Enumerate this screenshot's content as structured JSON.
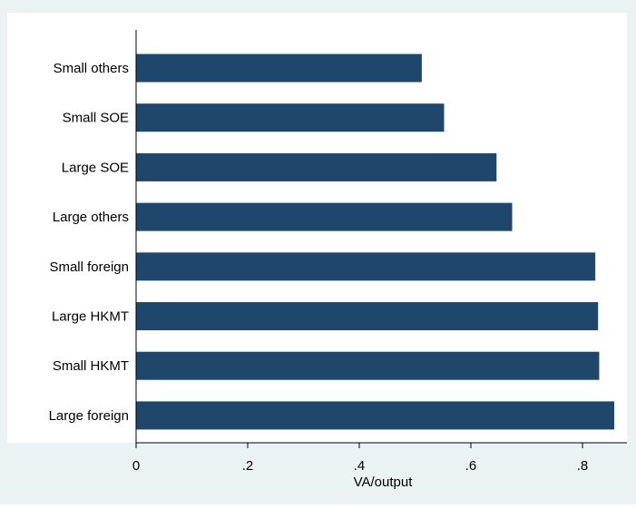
{
  "chart_data": {
    "type": "bar",
    "orientation": "horizontal",
    "categories": [
      "Small others",
      "Small SOE",
      "Large SOE",
      "Large others",
      "Small foreign",
      "Large HKMT",
      "Small HKMT",
      "Large foreign"
    ],
    "values": [
      0.512,
      0.552,
      0.646,
      0.674,
      0.823,
      0.828,
      0.83,
      0.857
    ],
    "xlabel": "VA/output",
    "ylabel": "",
    "title": "",
    "xlim": [
      0,
      0.88
    ],
    "xticks": [
      0,
      0.2,
      0.4,
      0.6,
      0.8
    ],
    "xtick_labels": [
      "0",
      ".2",
      ".4",
      ".6",
      ".8"
    ],
    "grid": false,
    "legend": "none",
    "colors": {
      "bar": "#1f476b",
      "outer_background": "#eaf2f3",
      "plot_background": "#ffffff",
      "axis": "#000000"
    }
  }
}
